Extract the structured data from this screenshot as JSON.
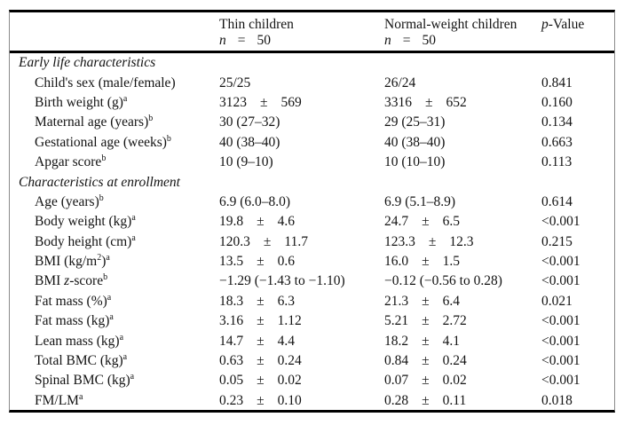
{
  "table": {
    "pm_symbol": "±",
    "header": {
      "groups": [
        {
          "title": "Thin children",
          "n_label": "n",
          "eq": "=",
          "n_value": "50"
        },
        {
          "title": "Normal-weight children",
          "n_label": "n",
          "eq": "=",
          "n_value": "50"
        }
      ],
      "p_title": [
        {
          "t": "p",
          "s": "i"
        },
        {
          "t": "-Value"
        }
      ]
    },
    "sections": [
      {
        "title": "Early life characteristics",
        "rows": [
          {
            "label": [
              {
                "t": "Child's sex (male/female)"
              }
            ],
            "thin": {
              "kind": "plain",
              "t": "25/25"
            },
            "normal": {
              "kind": "plain",
              "t": "26/24"
            },
            "p": "0.841"
          },
          {
            "label": [
              {
                "t": "Birth weight (g)"
              },
              {
                "t": "a",
                "s": "sup"
              }
            ],
            "thin": {
              "kind": "pm",
              "m": "3123",
              "sd": "569"
            },
            "normal": {
              "kind": "pm",
              "m": "3316",
              "sd": "652"
            },
            "p": "0.160"
          },
          {
            "label": [
              {
                "t": "Maternal age (years)"
              },
              {
                "t": "b",
                "s": "sup"
              }
            ],
            "thin": {
              "kind": "plain",
              "t": "30 (27–32)"
            },
            "normal": {
              "kind": "plain",
              "t": "29 (25–31)"
            },
            "p": "0.134"
          },
          {
            "label": [
              {
                "t": "Gestational age (weeks)"
              },
              {
                "t": "b",
                "s": "sup"
              }
            ],
            "thin": {
              "kind": "plain",
              "t": "40 (38–40)"
            },
            "normal": {
              "kind": "plain",
              "t": "40 (38–40)"
            },
            "p": "0.663"
          },
          {
            "label": [
              {
                "t": "Apgar score"
              },
              {
                "t": "b",
                "s": "sup"
              }
            ],
            "thin": {
              "kind": "plain",
              "t": "10 (9–10)"
            },
            "normal": {
              "kind": "plain",
              "t": "10 (10–10)"
            },
            "p": "0.113"
          }
        ]
      },
      {
        "title": "Characteristics at enrollment",
        "rows": [
          {
            "label": [
              {
                "t": "Age (years)"
              },
              {
                "t": "b",
                "s": "sup"
              }
            ],
            "thin": {
              "kind": "plain",
              "t": "6.9 (6.0–8.0)"
            },
            "normal": {
              "kind": "plain",
              "t": "6.9 (5.1–8.9)"
            },
            "p": "0.614"
          },
          {
            "label": [
              {
                "t": "Body weight (kg)"
              },
              {
                "t": "a",
                "s": "sup"
              }
            ],
            "thin": {
              "kind": "pm",
              "m": "19.8",
              "sd": "4.6"
            },
            "normal": {
              "kind": "pm",
              "m": "24.7",
              "sd": "6.5"
            },
            "p": "<0.001"
          },
          {
            "label": [
              {
                "t": "Body height (cm)"
              },
              {
                "t": "a",
                "s": "sup"
              }
            ],
            "thin": {
              "kind": "pm",
              "m": "120.3",
              "sd": "11.7"
            },
            "normal": {
              "kind": "pm",
              "m": "123.3",
              "sd": "12.3"
            },
            "p": "0.215"
          },
          {
            "label": [
              {
                "t": "BMI (kg/m"
              },
              {
                "t": "2",
                "s": "sup"
              },
              {
                "t": ")"
              },
              {
                "t": "a",
                "s": "sup"
              }
            ],
            "thin": {
              "kind": "pm",
              "m": "13.5",
              "sd": "0.6"
            },
            "normal": {
              "kind": "pm",
              "m": "16.0",
              "sd": "1.5"
            },
            "p": "<0.001"
          },
          {
            "label": [
              {
                "t": "BMI "
              },
              {
                "t": "z",
                "s": "i"
              },
              {
                "t": "-score"
              },
              {
                "t": "b",
                "s": "sup"
              }
            ],
            "thin": {
              "kind": "plain",
              "t": "−1.29 (−1.43 to −1.10)"
            },
            "normal": {
              "kind": "plain",
              "t": "−0.12 (−0.56 to 0.28)"
            },
            "p": "<0.001"
          },
          {
            "label": [
              {
                "t": "Fat mass (%)"
              },
              {
                "t": "a",
                "s": "sup"
              }
            ],
            "thin": {
              "kind": "pm",
              "m": "18.3",
              "sd": "6.3"
            },
            "normal": {
              "kind": "pm",
              "m": "21.3",
              "sd": "6.4"
            },
            "p": "0.021"
          },
          {
            "label": [
              {
                "t": "Fat mass (kg)"
              },
              {
                "t": "a",
                "s": "sup"
              }
            ],
            "thin": {
              "kind": "pm",
              "m": "3.16",
              "sd": "1.12"
            },
            "normal": {
              "kind": "pm",
              "m": "5.21",
              "sd": "2.72"
            },
            "p": "<0.001"
          },
          {
            "label": [
              {
                "t": "Lean mass (kg)"
              },
              {
                "t": "a",
                "s": "sup"
              }
            ],
            "thin": {
              "kind": "pm",
              "m": "14.7",
              "sd": "4.4"
            },
            "normal": {
              "kind": "pm",
              "m": "18.2",
              "sd": "4.1"
            },
            "p": "<0.001"
          },
          {
            "label": [
              {
                "t": "Total BMC (kg)"
              },
              {
                "t": "a",
                "s": "sup"
              }
            ],
            "thin": {
              "kind": "pm",
              "m": "0.63",
              "sd": "0.24"
            },
            "normal": {
              "kind": "pm",
              "m": "0.84",
              "sd": "0.24"
            },
            "p": "<0.001"
          },
          {
            "label": [
              {
                "t": "Spinal BMC (kg)"
              },
              {
                "t": "a",
                "s": "sup"
              }
            ],
            "thin": {
              "kind": "pm",
              "m": "0.05",
              "sd": "0.02"
            },
            "normal": {
              "kind": "pm",
              "m": "0.07",
              "sd": "0.02"
            },
            "p": "<0.001"
          },
          {
            "label": [
              {
                "t": "FM/LM"
              },
              {
                "t": "a",
                "s": "sup"
              }
            ],
            "thin": {
              "kind": "pm",
              "m": "0.23",
              "sd": "0.10"
            },
            "normal": {
              "kind": "pm",
              "m": "0.28",
              "sd": "0.11"
            },
            "p": "0.018"
          }
        ]
      }
    ]
  }
}
